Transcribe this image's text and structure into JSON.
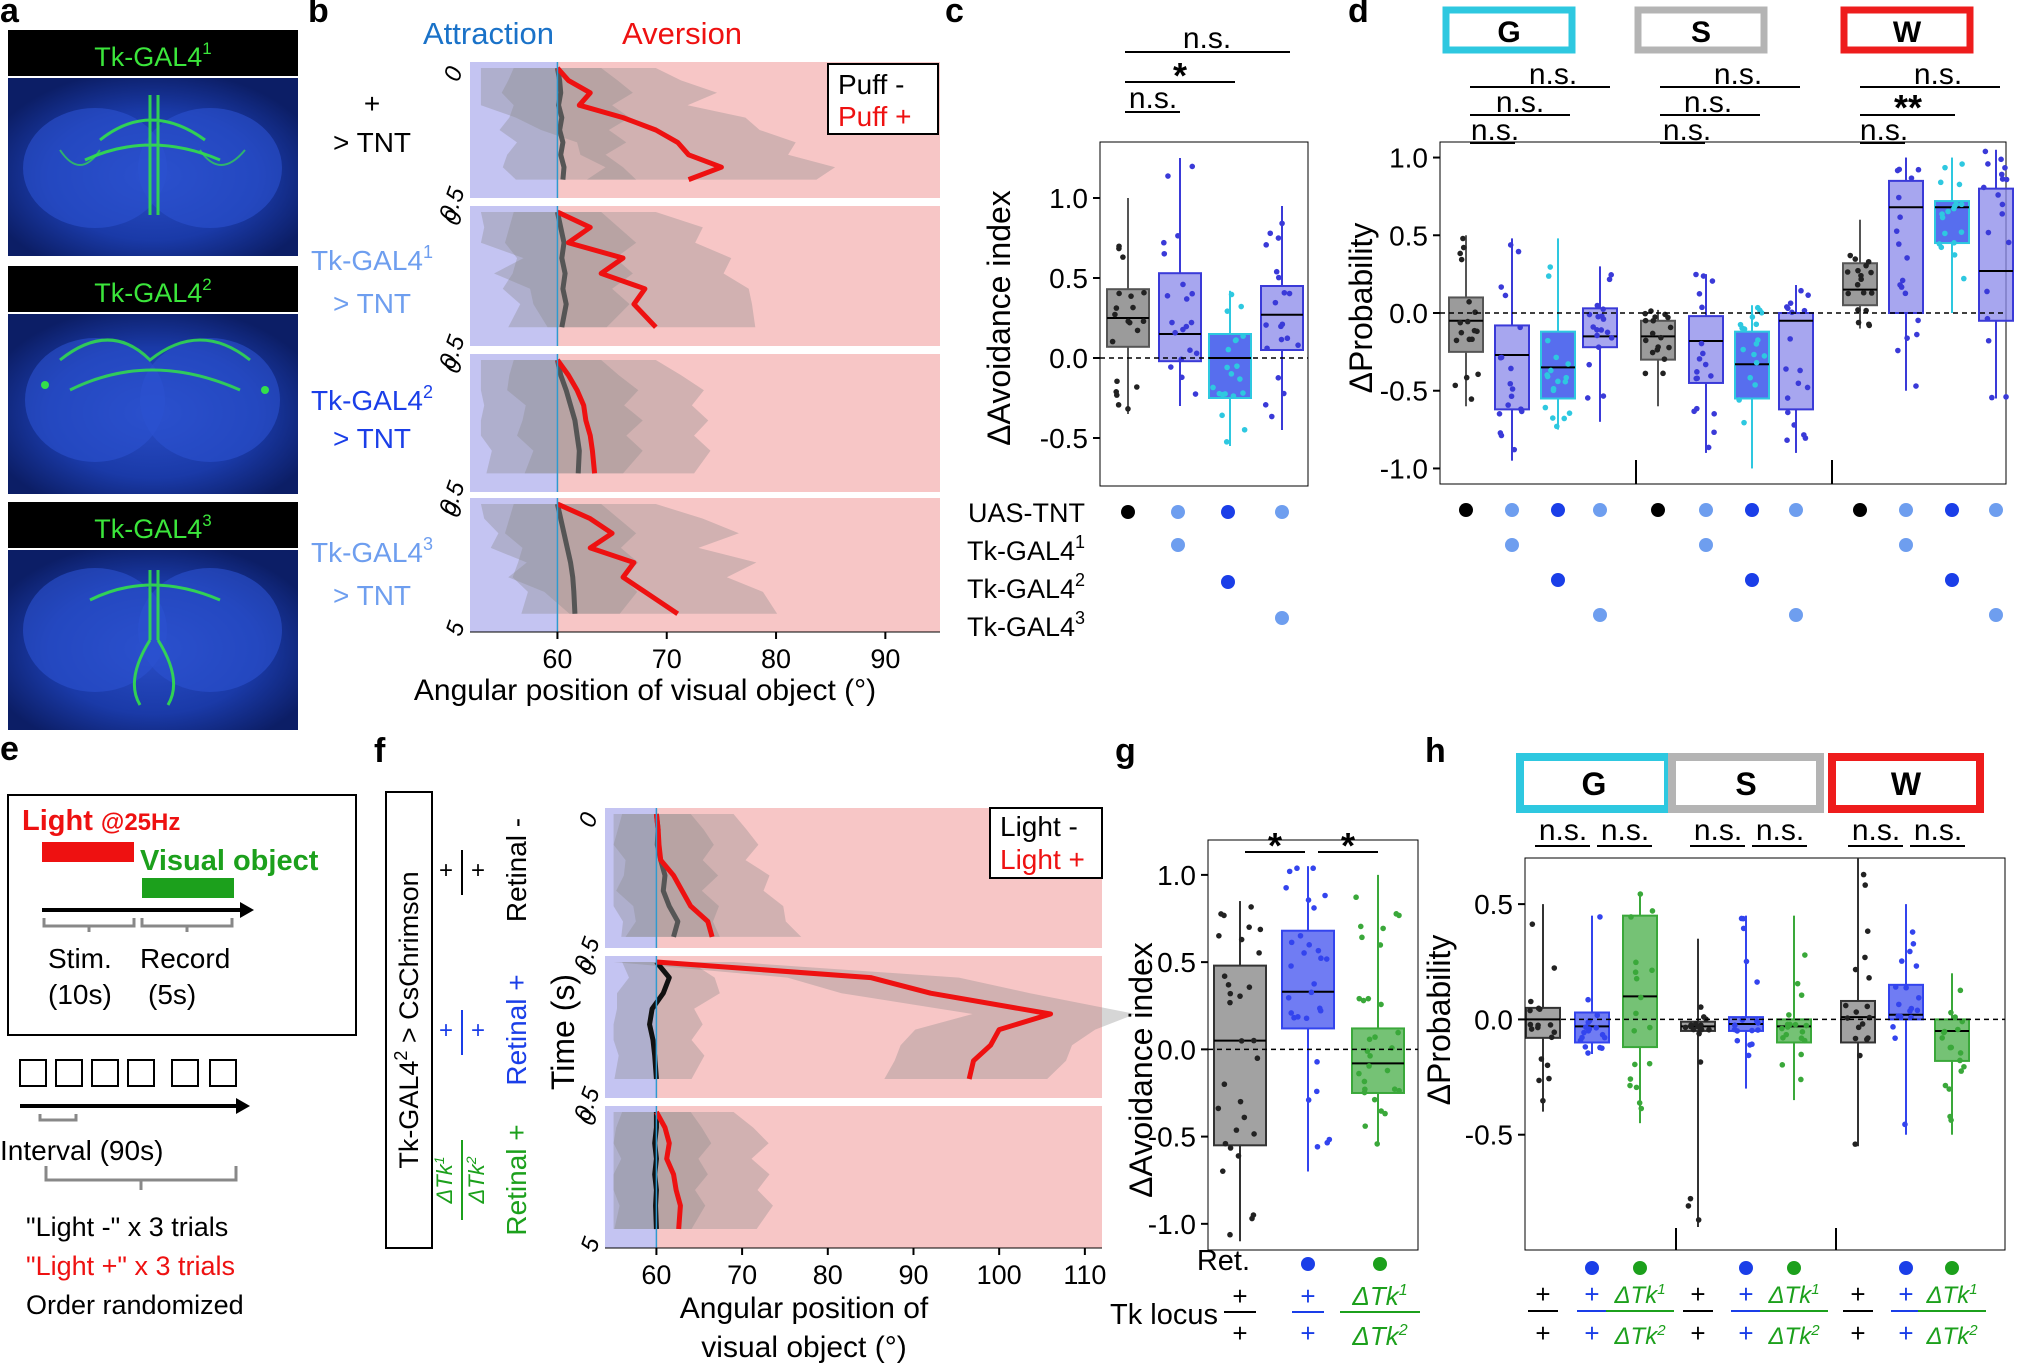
{
  "panels": {
    "a": {
      "label": "a",
      "images": [
        {
          "caption_base": "Tk-GAL4",
          "caption_sup": "1"
        },
        {
          "caption_base": "Tk-GAL4",
          "caption_sup": "2"
        },
        {
          "caption_base": "Tk-GAL4",
          "caption_sup": "3"
        }
      ]
    },
    "b": {
      "label": "b",
      "header_left": "Attraction",
      "header_right": "Aversion",
      "legend": [
        "Puff -",
        "Puff +"
      ],
      "genotypes": [
        {
          "line1": "+",
          "line2": "> TNT",
          "sup": "",
          "color": "#000000"
        },
        {
          "line1": "Tk-GAL4",
          "sup": "1",
          "line2": "> TNT",
          "color": "#6e9eef"
        },
        {
          "line1": "Tk-GAL4",
          "sup": "2",
          "line2": "> TNT",
          "color": "#1a3ee8"
        },
        {
          "line1": "Tk-GAL4",
          "sup": "3",
          "line2": "> TNT",
          "color": "#6e9eef"
        }
      ],
      "xlabel": "Angular position of visual object (°)",
      "xticks": [
        "60",
        "70",
        "80",
        "90"
      ],
      "yticks": [
        "0",
        "0.5",
        "5"
      ]
    },
    "c": {
      "label": "c",
      "ylabel": "ΔAvoidance index",
      "yticks": [
        "1.0",
        "0.5",
        "0.0",
        "-0.5"
      ],
      "significance": [
        "n.s.",
        "*",
        "n.s."
      ],
      "row_labels": [
        {
          "base": "UAS-TNT",
          "sup": ""
        },
        {
          "base": "Tk-GAL4",
          "sup": "1"
        },
        {
          "base": "Tk-GAL4",
          "sup": "2"
        },
        {
          "base": "Tk-GAL4",
          "sup": "3"
        }
      ]
    },
    "d": {
      "label": "d",
      "groups": [
        "G",
        "S",
        "W"
      ],
      "group_colors": [
        "#2ec8e0",
        "#b4b4b4",
        "#ee1c1c"
      ],
      "ylabel": "ΔProbability",
      "yticks": [
        "1.0",
        "0.5",
        "0.0",
        "-0.5",
        "-1.0"
      ],
      "significance": {
        "G": [
          "n.s.",
          "n.s.",
          "n.s."
        ],
        "S": [
          "n.s.",
          "n.s.",
          "n.s."
        ],
        "W": [
          "n.s.",
          "**",
          "n.s."
        ]
      }
    },
    "e": {
      "label": "e",
      "light_label": "Light",
      "freq_label": "@25Hz",
      "visual_label": "Visual object",
      "stim_label": "Stim.",
      "stim_dur": "(10s)",
      "record_label": "Record",
      "record_dur": "(5s)",
      "interval_label": "Interval (90s)",
      "trials": [
        "\"Light -\" x 3 trials",
        "\"Light +\" x 3 trials",
        "Order randomized"
      ]
    },
    "f": {
      "label": "f",
      "box_label": "Tk-GAL4",
      "box_sup": "2",
      "box_suffix": " > CsChrimson",
      "rows": [
        "Retinal -",
        "Retinal +",
        "Retinal +"
      ],
      "legend": [
        "Light -",
        "Light +"
      ],
      "ylabel": "Time (s)",
      "xlabel1": "Angular position of",
      "xlabel2": "visual object (°)",
      "xticks": [
        "60",
        "70",
        "80",
        "90",
        "100",
        "110"
      ],
      "yticks": [
        "0",
        "0.5",
        "5"
      ],
      "frac_top": "ΔTk",
      "frac_bot": "ΔTk",
      "plus": "+"
    },
    "g": {
      "label": "g",
      "ylabel": "ΔAvoidance index",
      "yticks": [
        "1.0",
        "0.5",
        "0.0",
        "-0.5",
        "-1.0"
      ],
      "significance": [
        "*",
        "*"
      ],
      "ret_label": "Ret.",
      "tk_label": "Tk locus"
    },
    "h": {
      "label": "h",
      "groups": [
        "G",
        "S",
        "W"
      ],
      "ylabel": "ΔProbability",
      "yticks": [
        "0.5",
        "0.0",
        "-0.5"
      ],
      "significance": [
        "n.s.",
        "n.s.",
        "n.s.",
        "n.s.",
        "n.s.",
        "n.s."
      ]
    }
  },
  "chart_data": [
    {
      "panel": "b",
      "type": "line",
      "xlabel": "Angular position of visual object (°)",
      "xlim": [
        52,
        95
      ],
      "subplots": [
        {
          "name": "+ > TNT",
          "series": [
            {
              "name": "Puff -",
              "color": "#555555",
              "x": [
                60,
                60.2,
                60.3,
                60.1,
                60.4,
                60.2,
                60.5,
                60.3,
                60.6,
                60.5
              ],
              "t": [
                0,
                0.05,
                0.1,
                0.15,
                0.2,
                0.25,
                0.3,
                0.35,
                0.4,
                0.45
              ]
            },
            {
              "name": "Puff +",
              "color": "#ee1111",
              "x": [
                60,
                61,
                63,
                62,
                66,
                69,
                71,
                72,
                75,
                72
              ],
              "t": [
                0,
                0.05,
                0.1,
                0.15,
                0.2,
                0.25,
                0.3,
                0.35,
                0.4,
                0.45
              ]
            }
          ]
        },
        {
          "name": "Tk-GAL4¹ > TNT",
          "series": [
            {
              "name": "Puff -",
              "color": "#555555",
              "x": [
                60,
                60.3,
                60.6,
                60.4,
                60.7,
                60.5,
                60.8,
                60.4
              ],
              "t": [
                0,
                0.06,
                0.12,
                0.18,
                0.24,
                0.3,
                0.36,
                0.45
              ]
            },
            {
              "name": "Puff +",
              "color": "#ee1111",
              "x": [
                60,
                63,
                61,
                66,
                64,
                68,
                67,
                69
              ],
              "t": [
                0,
                0.06,
                0.12,
                0.18,
                0.24,
                0.3,
                0.36,
                0.45
              ]
            }
          ]
        },
        {
          "name": "Tk-GAL4² > TNT",
          "series": [
            {
              "name": "Puff -",
              "color": "#555555",
              "x": [
                60,
                60.3,
                60.8,
                61.2,
                61.6,
                61.8,
                62,
                61.9
              ],
              "t": [
                0,
                0.06,
                0.12,
                0.18,
                0.24,
                0.3,
                0.36,
                0.45
              ]
            },
            {
              "name": "Puff +",
              "color": "#ee1111",
              "x": [
                60,
                61,
                61.8,
                62.4,
                62.6,
                63,
                63.2,
                63.4
              ],
              "t": [
                0,
                0.06,
                0.12,
                0.18,
                0.24,
                0.3,
                0.36,
                0.45
              ]
            }
          ]
        },
        {
          "name": "Tk-GAL4³ > TNT",
          "series": [
            {
              "name": "Puff -",
              "color": "#555555",
              "x": [
                60,
                60.3,
                60.6,
                60.9,
                61.2,
                61.4,
                61.5,
                61.6
              ],
              "t": [
                0,
                0.06,
                0.12,
                0.18,
                0.24,
                0.3,
                0.36,
                0.45
              ]
            },
            {
              "name": "Puff +",
              "color": "#ee1111",
              "x": [
                60,
                63,
                65,
                63,
                67,
                66,
                68,
                71
              ],
              "t": [
                0,
                0.06,
                0.12,
                0.18,
                0.24,
                0.3,
                0.36,
                0.45
              ]
            }
          ]
        }
      ]
    },
    {
      "panel": "c",
      "type": "box",
      "ylabel": "ΔAvoidance index",
      "ylim": [
        -0.8,
        1.35
      ],
      "boxes": [
        {
          "name": "UAS-TNT",
          "color": "#7a7a7a",
          "q1": 0.07,
          "median": 0.25,
          "q3": 0.43,
          "wlo": -0.35,
          "whi": 1.0
        },
        {
          "name": "Tk-GAL4¹",
          "color": "#8a88ea",
          "q1": -0.02,
          "median": 0.15,
          "q3": 0.53,
          "wlo": -0.3,
          "whi": 1.25
        },
        {
          "name": "Tk-GAL4²",
          "color": "#1f3de8",
          "q1": -0.25,
          "median": 0.0,
          "q3": 0.15,
          "wlo": -0.55,
          "whi": 0.42
        },
        {
          "name": "Tk-GAL4³",
          "color": "#8a88ea",
          "q1": 0.05,
          "median": 0.27,
          "q3": 0.45,
          "wlo": -0.45,
          "whi": 0.95
        }
      ]
    },
    {
      "panel": "d",
      "type": "box",
      "ylabel": "ΔProbability",
      "ylim": [
        -1.1,
        1.1
      ],
      "groups": [
        {
          "name": "G",
          "boxes": [
            {
              "q1": -0.25,
              "median": -0.05,
              "q3": 0.1,
              "wlo": -0.6,
              "whi": 0.5
            },
            {
              "q1": -0.62,
              "median": -0.27,
              "q3": -0.08,
              "wlo": -0.95,
              "whi": 0.48
            },
            {
              "q1": -0.55,
              "median": -0.35,
              "q3": -0.12,
              "wlo": -0.75,
              "whi": 0.48
            },
            {
              "q1": -0.22,
              "median": -0.15,
              "q3": 0.03,
              "wlo": -0.7,
              "whi": 0.3
            }
          ]
        },
        {
          "name": "S",
          "boxes": [
            {
              "q1": -0.3,
              "median": -0.15,
              "q3": -0.05,
              "wlo": -0.6,
              "whi": 0.02
            },
            {
              "q1": -0.45,
              "median": -0.18,
              "q3": -0.02,
              "wlo": -0.9,
              "whi": 0.25
            },
            {
              "q1": -0.55,
              "median": -0.33,
              "q3": -0.12,
              "wlo": -1.0,
              "whi": 0.05
            },
            {
              "q1": -0.62,
              "median": -0.05,
              "q3": 0.0,
              "wlo": -0.9,
              "whi": 0.18
            }
          ]
        },
        {
          "name": "W",
          "boxes": [
            {
              "q1": 0.05,
              "median": 0.15,
              "q3": 0.32,
              "wlo": -0.1,
              "whi": 0.6
            },
            {
              "q1": 0.0,
              "median": 0.68,
              "q3": 0.85,
              "wlo": -0.5,
              "whi": 1.0
            },
            {
              "q1": 0.45,
              "median": 0.68,
              "q3": 0.72,
              "wlo": 0.0,
              "whi": 1.0
            },
            {
              "q1": -0.05,
              "median": 0.27,
              "q3": 0.8,
              "wlo": -0.55,
              "whi": 1.05
            }
          ]
        }
      ]
    },
    {
      "panel": "f",
      "type": "line",
      "xlabel": "Angular position of visual object (°)",
      "xlim": [
        54,
        112
      ],
      "subplots": [
        {
          "name": "+/+ Retinal -",
          "series": [
            {
              "name": "Light -",
              "color": "#555555",
              "x": [
                60,
                60.2,
                60.1,
                60.5,
                61,
                60.8,
                61.5,
                62.5,
                62
              ],
              "t": [
                0,
                0.06,
                0.12,
                0.18,
                0.24,
                0.3,
                0.36,
                0.42,
                0.48
              ]
            },
            {
              "name": "Light +",
              "color": "#ee1111",
              "x": [
                60,
                60.2,
                60.3,
                60.5,
                62,
                63,
                64,
                66,
                66.5
              ],
              "t": [
                0,
                0.06,
                0.12,
                0.18,
                0.24,
                0.3,
                0.36,
                0.42,
                0.48
              ]
            }
          ]
        },
        {
          "name": "+/+ Retinal +",
          "series": [
            {
              "name": "Light -",
              "color": "#111111",
              "x": [
                60,
                61.5,
                60.8,
                59.5,
                59.2,
                59.6,
                59.8,
                60.0
              ],
              "t": [
                0,
                0.06,
                0.12,
                0.18,
                0.24,
                0.3,
                0.36,
                0.45
              ]
            },
            {
              "name": "Light +",
              "color": "#ee1111",
              "x": [
                60,
                85,
                92,
                106,
                100,
                99,
                97,
                96.5
              ],
              "t": [
                0,
                0.06,
                0.12,
                0.2,
                0.26,
                0.32,
                0.38,
                0.45
              ]
            }
          ]
        },
        {
          "name": "ΔTk¹/ΔTk² Retinal +",
          "series": [
            {
              "name": "Light -",
              "color": "#111111",
              "x": [
                60,
                60,
                59.8,
                60,
                59.8,
                60,
                59.9,
                60
              ],
              "t": [
                0,
                0.06,
                0.12,
                0.18,
                0.24,
                0.3,
                0.36,
                0.45
              ]
            },
            {
              "name": "Light +",
              "color": "#ee1111",
              "x": [
                60,
                61,
                61.5,
                61.2,
                62,
                62.3,
                62.8,
                62.6
              ],
              "t": [
                0,
                0.06,
                0.12,
                0.18,
                0.24,
                0.3,
                0.36,
                0.45
              ]
            }
          ]
        }
      ]
    },
    {
      "panel": "g",
      "type": "box",
      "ylabel": "ΔAvoidance index",
      "ylim": [
        -1.15,
        1.2
      ],
      "boxes": [
        {
          "name": "+/+ Ret-",
          "color": "#7a7a7a",
          "q1": -0.55,
          "median": 0.05,
          "q3": 0.48,
          "wlo": -1.1,
          "whi": 0.85
        },
        {
          "name": "+/+ Ret+",
          "color": "#3344ee",
          "q1": 0.12,
          "median": 0.33,
          "q3": 0.68,
          "wlo": -0.7,
          "whi": 1.05
        },
        {
          "name": "ΔTk¹/ΔTk² Ret+",
          "color": "#3aa83a",
          "q1": -0.25,
          "median": -0.08,
          "q3": 0.12,
          "wlo": -0.55,
          "whi": 1.0
        }
      ]
    },
    {
      "panel": "h",
      "type": "box",
      "ylabel": "ΔProbability",
      "ylim": [
        -1.0,
        0.7
      ],
      "groups": [
        {
          "name": "G",
          "boxes": [
            {
              "q1": -0.08,
              "median": 0.0,
              "q3": 0.05,
              "wlo": -0.4,
              "whi": 0.5
            },
            {
              "q1": -0.1,
              "median": -0.03,
              "q3": 0.03,
              "wlo": -0.15,
              "whi": 0.45
            },
            {
              "q1": -0.12,
              "median": 0.1,
              "q3": 0.45,
              "wlo": -0.45,
              "whi": 0.55
            }
          ]
        },
        {
          "name": "S",
          "boxes": [
            {
              "q1": -0.05,
              "median": -0.03,
              "q3": -0.01,
              "wlo": -0.9,
              "whi": 0.35
            },
            {
              "q1": -0.05,
              "median": -0.02,
              "q3": 0.01,
              "wlo": -0.3,
              "whi": 0.45
            },
            {
              "q1": -0.1,
              "median": -0.03,
              "q3": 0.0,
              "wlo": -0.35,
              "whi": 0.45
            }
          ]
        },
        {
          "name": "W",
          "boxes": [
            {
              "q1": -0.1,
              "median": 0.01,
              "q3": 0.08,
              "wlo": -0.55,
              "whi": 0.7
            },
            {
              "q1": 0.0,
              "median": 0.02,
              "q3": 0.15,
              "wlo": -0.5,
              "whi": 0.5
            },
            {
              "q1": -0.18,
              "median": -0.05,
              "q3": 0.0,
              "wlo": -0.5,
              "whi": 0.2
            }
          ]
        }
      ]
    }
  ]
}
